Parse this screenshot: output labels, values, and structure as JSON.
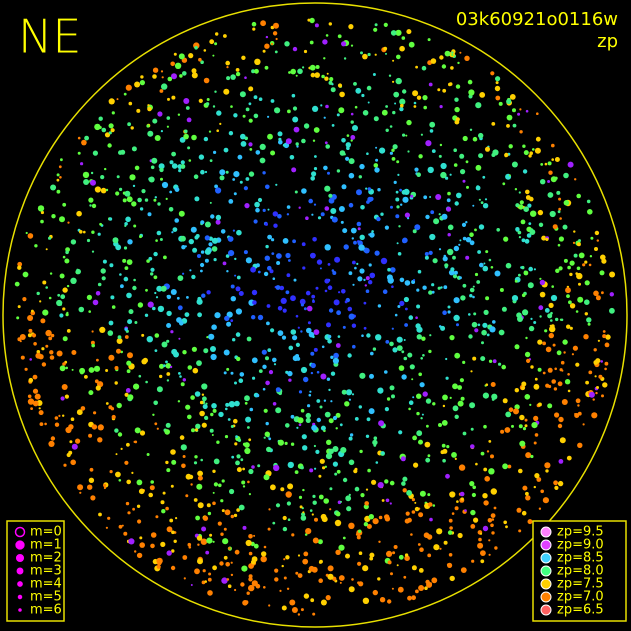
{
  "header": {
    "direction": "NE",
    "image_id": "03k60921o0116w",
    "subtitle": "zp"
  },
  "legend_m": {
    "items": [
      "m=0",
      "m=1",
      "m=2",
      "m=3",
      "m=4",
      "m=5",
      "m=6"
    ]
  },
  "legend_zp": {
    "items": [
      "zp=9.5",
      "zp=9.0",
      "zp=8.5",
      "zp=8.0",
      "zp=7.5",
      "zp=7.0",
      "zp=6.5"
    ]
  }
}
